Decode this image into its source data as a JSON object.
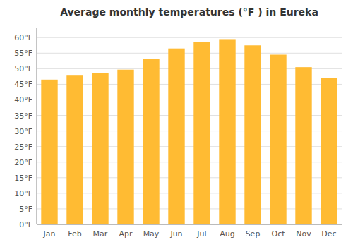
{
  "chart_data": {
    "type": "bar",
    "title": "Average monthly temperatures (°F ) in Eureka",
    "categories": [
      "Jan",
      "Feb",
      "Mar",
      "Apr",
      "May",
      "Jun",
      "Jul",
      "Aug",
      "Sep",
      "Oct",
      "Nov",
      "Dec"
    ],
    "values": [
      46.5,
      48.0,
      48.7,
      49.7,
      53.2,
      56.5,
      58.6,
      59.5,
      57.5,
      54.5,
      50.5,
      47.0
    ],
    "color": "#FFBB33",
    "ylim": [
      0,
      63
    ],
    "yticks": [
      {
        "value": 0,
        "label": "0°F"
      },
      {
        "value": 5,
        "label": "5°F"
      },
      {
        "value": 10,
        "label": "10°F"
      },
      {
        "value": 15,
        "label": "15°F"
      },
      {
        "value": 20,
        "label": "20°F"
      },
      {
        "value": 25,
        "label": "25°F"
      },
      {
        "value": 30,
        "label": "30°F"
      },
      {
        "value": 35,
        "label": "35°F"
      },
      {
        "value": 40,
        "label": "40°F"
      },
      {
        "value": 45,
        "label": "45°F"
      },
      {
        "value": 50,
        "label": "50°F"
      },
      {
        "value": 55,
        "label": "55°F"
      },
      {
        "value": 60,
        "label": "60°F"
      }
    ],
    "grid": true
  }
}
